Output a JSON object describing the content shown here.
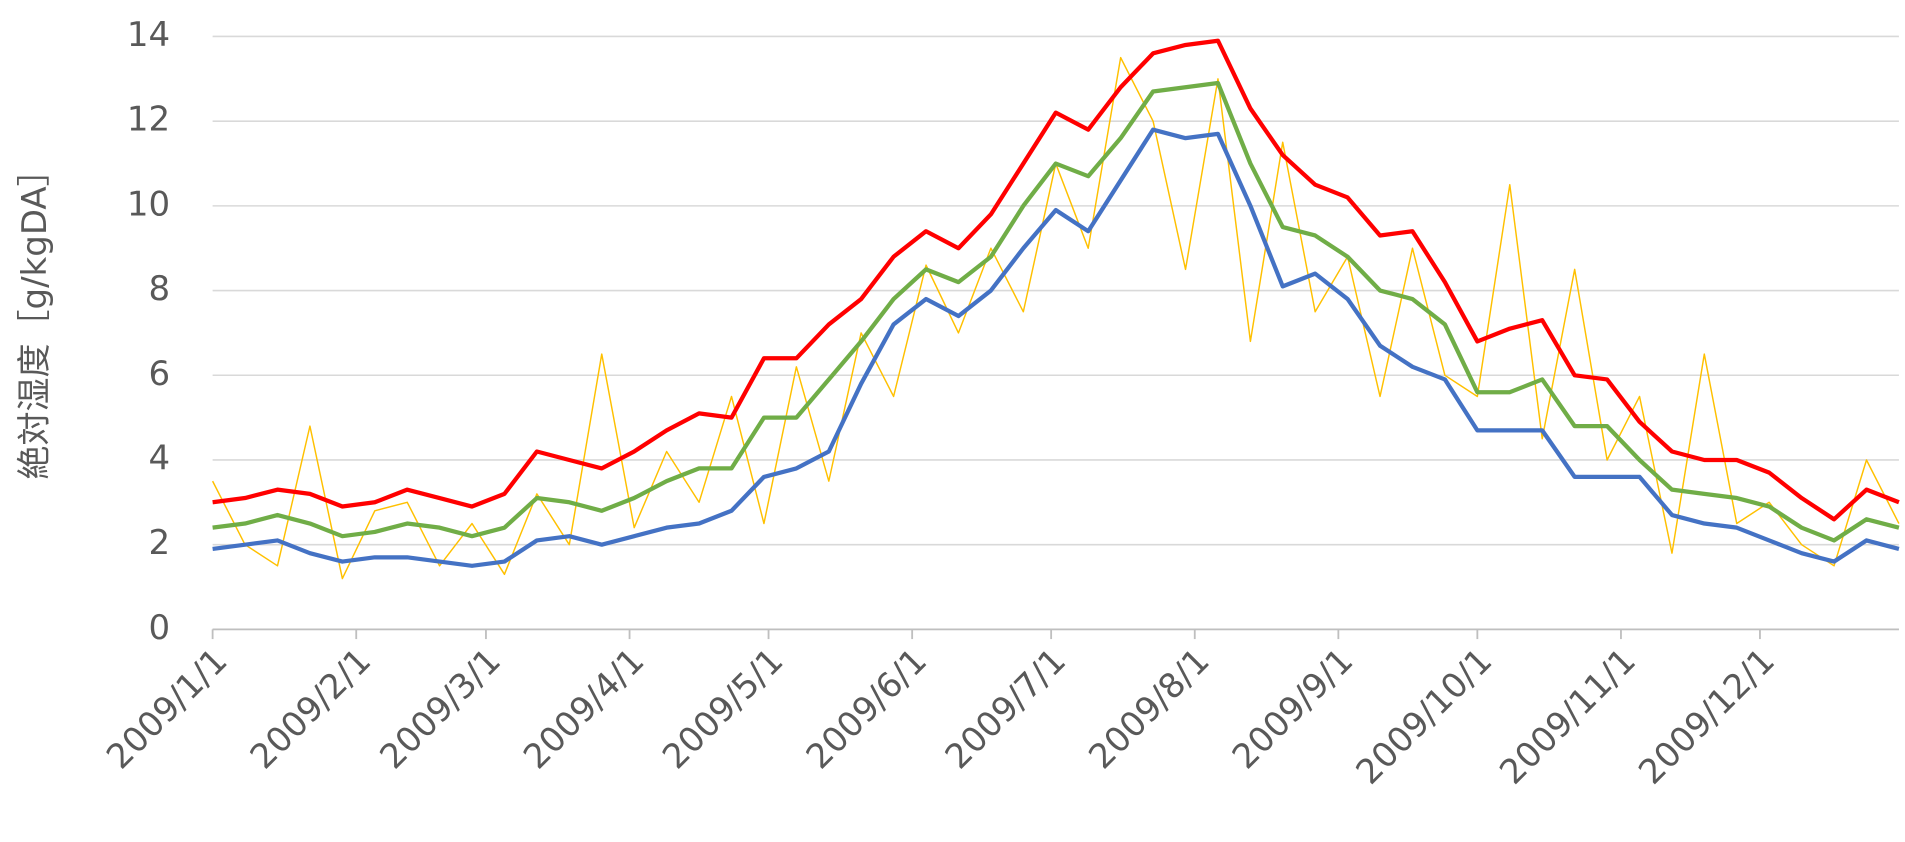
{
  "chart_data": {
    "type": "line",
    "y_label": "絶対湿度［g/kgDA］",
    "x": [
      "2009/1/1",
      "2009/1/8",
      "2009/1/15",
      "2009/1/22",
      "2009/1/29",
      "2009/2/5",
      "2009/2/12",
      "2009/2/19",
      "2009/2/26",
      "2009/3/5",
      "2009/3/12",
      "2009/3/19",
      "2009/3/26",
      "2009/4/2",
      "2009/4/9",
      "2009/4/16",
      "2009/4/23",
      "2009/4/30",
      "2009/5/7",
      "2009/5/14",
      "2009/5/21",
      "2009/5/28",
      "2009/6/4",
      "2009/6/11",
      "2009/6/18",
      "2009/6/25",
      "2009/7/2",
      "2009/7/9",
      "2009/7/16",
      "2009/7/23",
      "2009/7/30",
      "2009/8/6",
      "2009/8/13",
      "2009/8/20",
      "2009/8/27",
      "2009/9/3",
      "2009/9/10",
      "2009/9/17",
      "2009/9/24",
      "2009/10/1",
      "2009/10/8",
      "2009/10/15",
      "2009/10/22",
      "2009/10/29",
      "2009/11/5",
      "2009/11/12",
      "2009/11/19",
      "2009/11/26",
      "2009/12/3",
      "2009/12/10",
      "2009/12/17",
      "2009/12/24",
      "2009/12/31"
    ],
    "series": [
      {
        "color": "#ffc000",
        "width": 1.2,
        "values": [
          3.5,
          2.0,
          1.5,
          4.8,
          1.2,
          2.8,
          3.0,
          1.5,
          2.5,
          1.3,
          3.2,
          2.0,
          6.5,
          2.4,
          4.2,
          3.0,
          5.5,
          2.5,
          6.2,
          3.5,
          7.0,
          5.5,
          8.6,
          7.0,
          9.0,
          7.5,
          11.0,
          9.0,
          13.5,
          12.0,
          8.5,
          13.0,
          6.8,
          11.5,
          7.5,
          8.8,
          5.5,
          9.0,
          6.0,
          5.5,
          10.5,
          4.5,
          8.5,
          4.0,
          5.5,
          1.8,
          6.5,
          2.5,
          3.0,
          2.0,
          1.5,
          4.0,
          2.5
        ]
      },
      {
        "color": "#ff0000",
        "width": 3.5,
        "values": [
          3.0,
          3.1,
          3.3,
          3.2,
          2.9,
          3.0,
          3.3,
          3.1,
          2.9,
          3.2,
          4.2,
          4.0,
          3.8,
          4.2,
          4.7,
          5.1,
          5.0,
          6.4,
          6.4,
          7.2,
          7.8,
          8.8,
          9.4,
          9.0,
          9.8,
          11.0,
          12.2,
          11.8,
          12.8,
          13.6,
          13.8,
          13.9,
          12.3,
          11.2,
          10.5,
          10.2,
          9.3,
          9.4,
          8.2,
          6.8,
          7.1,
          7.3,
          6.0,
          5.9,
          4.9,
          4.2,
          4.0,
          4.0,
          3.7,
          3.1,
          2.6,
          3.3,
          3.0
        ]
      },
      {
        "color": "#70ad47",
        "width": 3.5,
        "values": [
          2.4,
          2.5,
          2.7,
          2.5,
          2.2,
          2.3,
          2.5,
          2.4,
          2.2,
          2.4,
          3.1,
          3.0,
          2.8,
          3.1,
          3.5,
          3.8,
          3.8,
          5.0,
          5.0,
          5.9,
          6.8,
          7.8,
          8.5,
          8.2,
          8.8,
          10.0,
          11.0,
          10.7,
          11.6,
          12.7,
          12.8,
          12.9,
          11.0,
          9.5,
          9.3,
          8.8,
          8.0,
          7.8,
          7.2,
          5.6,
          5.6,
          5.9,
          4.8,
          4.8,
          4.0,
          3.3,
          3.2,
          3.1,
          2.9,
          2.4,
          2.1,
          2.6,
          2.4
        ]
      },
      {
        "color": "#4472c4",
        "width": 3.5,
        "values": [
          1.9,
          2.0,
          2.1,
          1.8,
          1.6,
          1.7,
          1.7,
          1.6,
          1.5,
          1.6,
          2.1,
          2.2,
          2.0,
          2.2,
          2.4,
          2.5,
          2.8,
          3.6,
          3.8,
          4.2,
          5.8,
          7.2,
          7.8,
          7.4,
          8.0,
          9.0,
          9.9,
          9.4,
          10.6,
          11.8,
          11.6,
          11.7,
          10.0,
          8.1,
          8.4,
          7.8,
          6.7,
          6.2,
          5.9,
          4.7,
          4.7,
          4.7,
          3.6,
          3.6,
          3.6,
          2.7,
          2.5,
          2.4,
          2.1,
          1.8,
          1.6,
          2.1,
          1.9
        ]
      }
    ],
    "xlim": [
      "2009/1/1",
      "2009/12/31"
    ],
    "xticks": [
      "2009/1/1",
      "2009/2/1",
      "2009/3/1",
      "2009/4/1",
      "2009/5/1",
      "2009/6/1",
      "2009/7/1",
      "2009/8/1",
      "2009/9/1",
      "2009/10/1",
      "2009/11/1",
      "2009/12/1"
    ],
    "ylim": [
      0,
      14
    ],
    "yticks": [
      0,
      2,
      4,
      6,
      8,
      10,
      12,
      14
    ],
    "grid": true
  }
}
